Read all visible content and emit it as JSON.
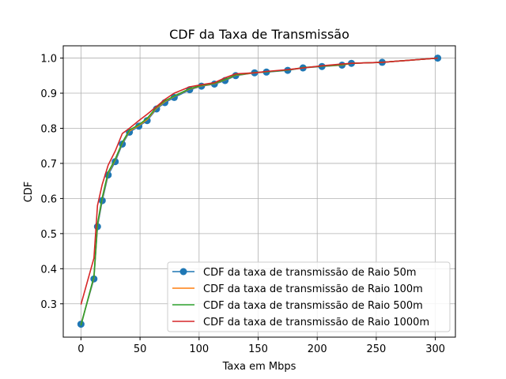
{
  "chart_data": {
    "type": "line",
    "title": "CDF da Taxa de Transmissão",
    "xlabel": "Taxa em Mbps",
    "ylabel": "CDF",
    "xlim": [
      -15,
      317
    ],
    "ylim": [
      0.205,
      1.035
    ],
    "xticks": [
      0,
      50,
      100,
      150,
      200,
      250,
      300
    ],
    "yticks": [
      0.3,
      0.4,
      0.5,
      0.6,
      0.7,
      0.8,
      0.9,
      1.0
    ],
    "xtick_labels": [
      "0",
      "50",
      "100",
      "150",
      "200",
      "250",
      "300"
    ],
    "ytick_labels": [
      "0.3",
      "0.4",
      "0.5",
      "0.6",
      "0.7",
      "0.8",
      "0.9",
      "1.0"
    ],
    "grid": true,
    "legend_position": "lower-right",
    "series": [
      {
        "name": "CDF da taxa de transmissão de Raio 50m",
        "color": "#1f77b4",
        "marker": "circle",
        "x": [
          0,
          11,
          14,
          18,
          23,
          29,
          35,
          41,
          49,
          56,
          64,
          71,
          79,
          92,
          102,
          113,
          122,
          131,
          147,
          157,
          175,
          188,
          204,
          221,
          229,
          255,
          302
        ],
        "y": [
          0.242,
          0.371,
          0.52,
          0.594,
          0.667,
          0.705,
          0.755,
          0.789,
          0.806,
          0.822,
          0.855,
          0.873,
          0.888,
          0.91,
          0.92,
          0.926,
          0.936,
          0.95,
          0.958,
          0.96,
          0.965,
          0.972,
          0.976,
          0.98,
          0.985,
          0.988,
          1.0
        ]
      },
      {
        "name": "CDF da taxa de transmissão de Raio 100m",
        "color": "#ff7f0e",
        "marker": "none",
        "x": [
          0,
          11,
          14,
          18,
          23,
          29,
          35,
          41,
          49,
          56,
          64,
          71,
          79,
          92,
          102,
          113,
          122,
          131,
          147,
          157,
          175,
          188,
          204,
          221,
          229,
          255,
          302
        ],
        "y": [
          0.24,
          0.375,
          0.525,
          0.6,
          0.672,
          0.71,
          0.758,
          0.792,
          0.808,
          0.825,
          0.858,
          0.876,
          0.891,
          0.912,
          0.921,
          0.927,
          0.938,
          0.951,
          0.958,
          0.961,
          0.966,
          0.972,
          0.977,
          0.98,
          0.985,
          0.988,
          1.0
        ]
      },
      {
        "name": "CDF da taxa de transmissão de Raio 500m",
        "color": "#2ca02c",
        "marker": "none",
        "x": [
          0,
          11,
          14,
          18,
          23,
          29,
          35,
          41,
          49,
          56,
          64,
          71,
          79,
          92,
          102,
          113,
          122,
          131,
          147,
          157,
          175,
          188,
          204,
          221,
          229,
          255,
          302
        ],
        "y": [
          0.238,
          0.378,
          0.528,
          0.603,
          0.675,
          0.712,
          0.76,
          0.795,
          0.81,
          0.828,
          0.86,
          0.878,
          0.892,
          0.913,
          0.922,
          0.928,
          0.939,
          0.952,
          0.959,
          0.961,
          0.966,
          0.973,
          0.977,
          0.981,
          0.985,
          0.988,
          1.0
        ]
      },
      {
        "name": "CDF da taxa de transmissão de Raio 1000m",
        "color": "#d62728",
        "marker": "none",
        "x": [
          0,
          11,
          14,
          18,
          23,
          29,
          35,
          41,
          49,
          56,
          64,
          71,
          79,
          92,
          102,
          113,
          122,
          131,
          147,
          157,
          175,
          188,
          204,
          221,
          229,
          255,
          302
        ],
        "y": [
          0.298,
          0.43,
          0.58,
          0.64,
          0.695,
          0.735,
          0.785,
          0.8,
          0.822,
          0.84,
          0.862,
          0.882,
          0.9,
          0.918,
          0.924,
          0.93,
          0.944,
          0.955,
          0.958,
          0.962,
          0.967,
          0.972,
          0.978,
          0.983,
          0.985,
          0.988,
          1.0
        ]
      }
    ]
  }
}
